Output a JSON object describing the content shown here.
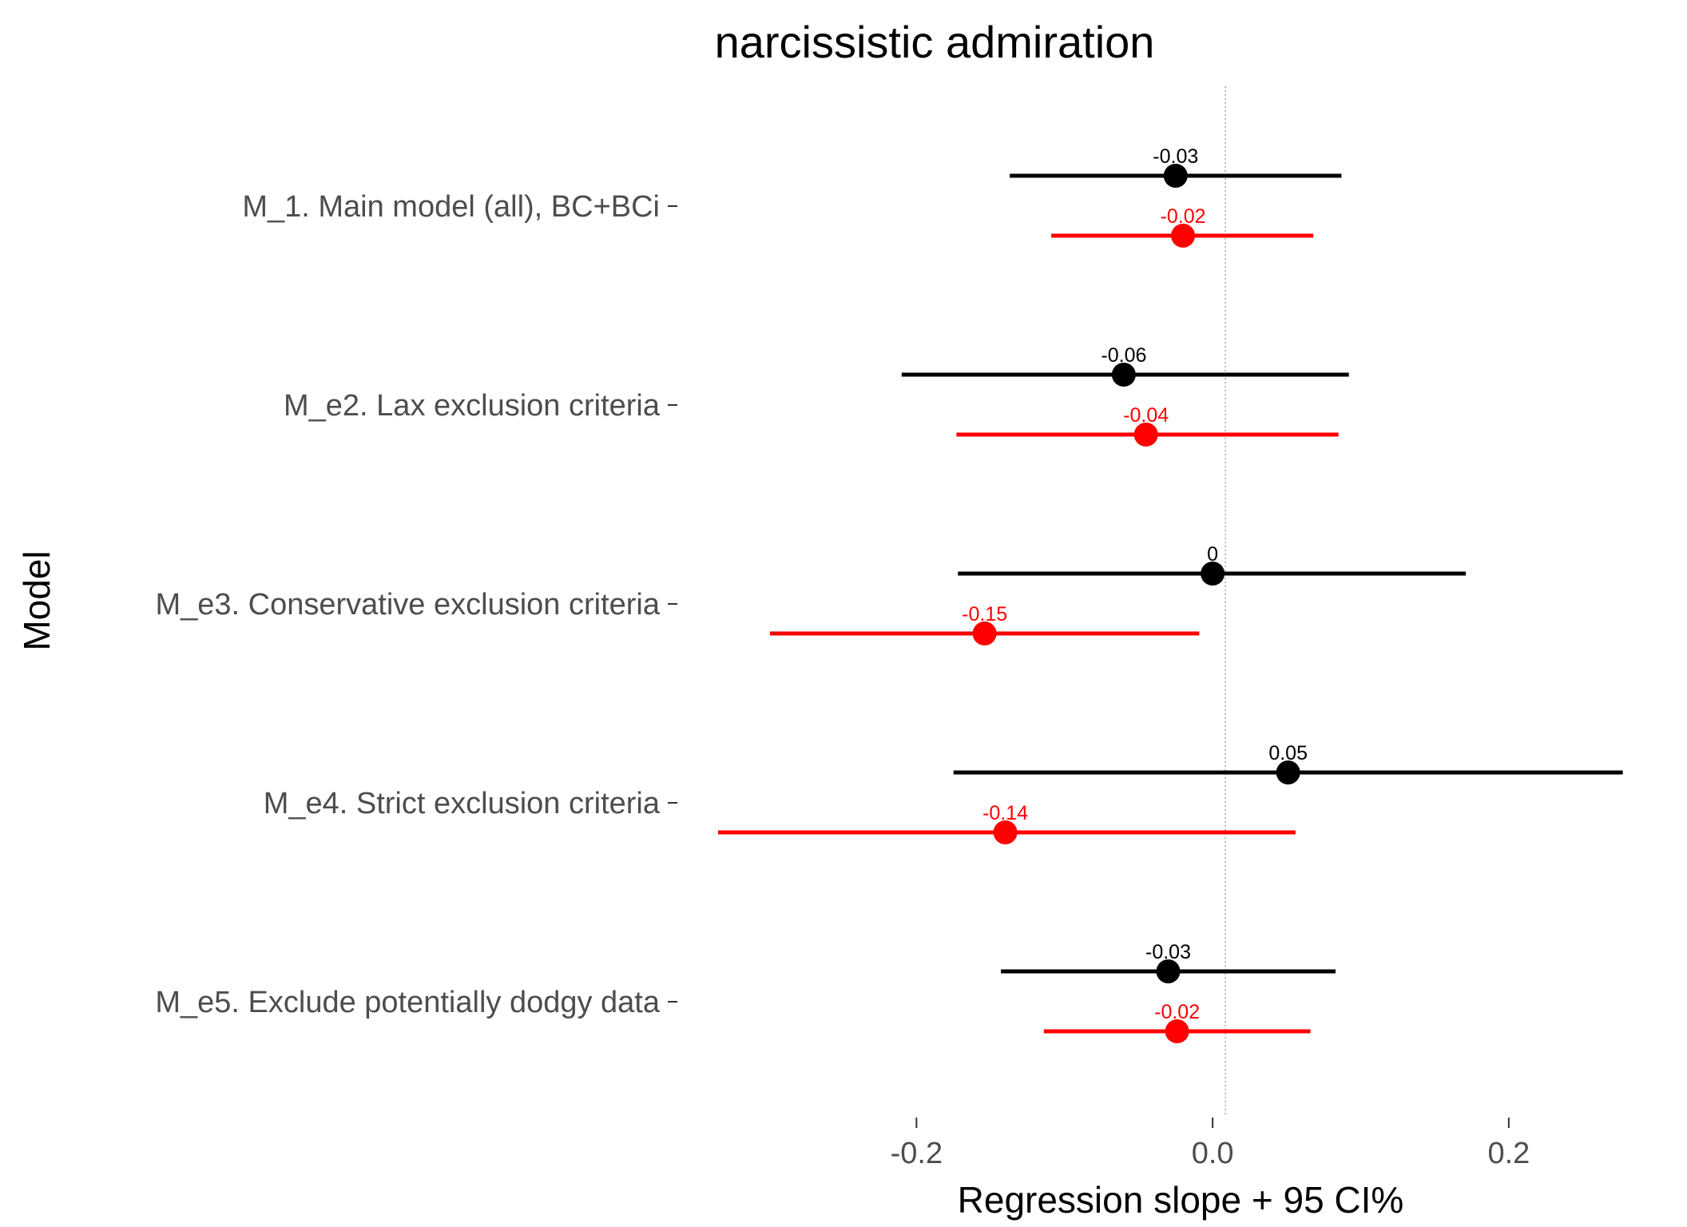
{
  "chart_data": {
    "type": "forest",
    "title": "narcissistic admiration",
    "xlabel": "Regression slope + 95 CI%",
    "ylabel": "Model",
    "xlim": [
      -0.355,
      0.295
    ],
    "x_ticks": [
      -0.2,
      0.0,
      0.2
    ],
    "x_tick_labels": [
      "-0.2",
      "0.0",
      "0.2"
    ],
    "reference_line_x": 0,
    "grid": false,
    "categories": [
      "M_1. Main model (all), BC+BCi",
      "M_e2. Lax exclusion criteria",
      "M_e3. Conservative exclusion criteria",
      "M_e4. Strict exclusion criteria",
      "M_e5. Exclude potentially dodgy data"
    ],
    "series": [
      {
        "color": "#000000",
        "points": [
          {
            "estimate": -0.025,
            "lower": -0.137,
            "upper": 0.087,
            "label": "-0.03"
          },
          {
            "estimate": -0.06,
            "lower": -0.21,
            "upper": 0.092,
            "label": "-0.06"
          },
          {
            "estimate": 0.0,
            "lower": -0.172,
            "upper": 0.171,
            "label": "0"
          },
          {
            "estimate": 0.051,
            "lower": -0.175,
            "upper": 0.277,
            "label": "0.05"
          },
          {
            "estimate": -0.03,
            "lower": -0.143,
            "upper": 0.083,
            "label": "-0.03"
          }
        ]
      },
      {
        "color": "#ff0000",
        "points": [
          {
            "estimate": -0.02,
            "lower": -0.109,
            "upper": 0.068,
            "label": "-0.02"
          },
          {
            "estimate": -0.045,
            "lower": -0.173,
            "upper": 0.085,
            "label": "-0.04"
          },
          {
            "estimate": -0.154,
            "lower": -0.299,
            "upper": -0.009,
            "label": "-0.15"
          },
          {
            "estimate": -0.14,
            "lower": -0.334,
            "upper": 0.056,
            "label": "-0.14"
          },
          {
            "estimate": -0.024,
            "lower": -0.114,
            "upper": 0.066,
            "label": "-0.02"
          }
        ]
      }
    ]
  }
}
